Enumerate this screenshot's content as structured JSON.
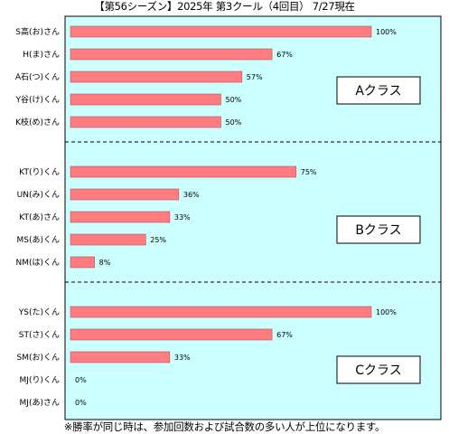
{
  "title": "【第56シーズン】2025年 第3クール（4回目） 7/27現在",
  "footnote": "※勝率が同じ時は、参加回数および試合数の多い人が上位になります。",
  "colors": {
    "plot_background": "#ccffff",
    "bar_fill": "#ff7c80",
    "bar_stroke": "#c0504d",
    "grid": "#000000",
    "frame": "#000000"
  },
  "chart_data": {
    "type": "bar",
    "orientation": "horizontal",
    "xlim": [
      0,
      100
    ],
    "value_suffix": "%",
    "groups": [
      {
        "label": "Aクラス",
        "categories": [
          "S高(お)さん",
          "H(ま)さん",
          "A石(つ)くん",
          "Y谷(け)くん",
          "K枝(め)さん"
        ],
        "values": [
          100,
          67,
          57,
          50,
          50
        ]
      },
      {
        "label": "Bクラス",
        "categories": [
          "KT(り)くん",
          "UN(み)くん",
          "KT(あ)さん",
          "MS(あ)くん",
          "NM(は)くん"
        ],
        "values": [
          75,
          36,
          33,
          25,
          8
        ]
      },
      {
        "label": "Cクラス",
        "categories": [
          "YS(た)くん",
          "ST(さ)くん",
          "SM(お)くん",
          "MJ(り)くん",
          "MJ(あ)さん"
        ],
        "values": [
          100,
          67,
          33,
          0,
          0
        ]
      }
    ]
  }
}
